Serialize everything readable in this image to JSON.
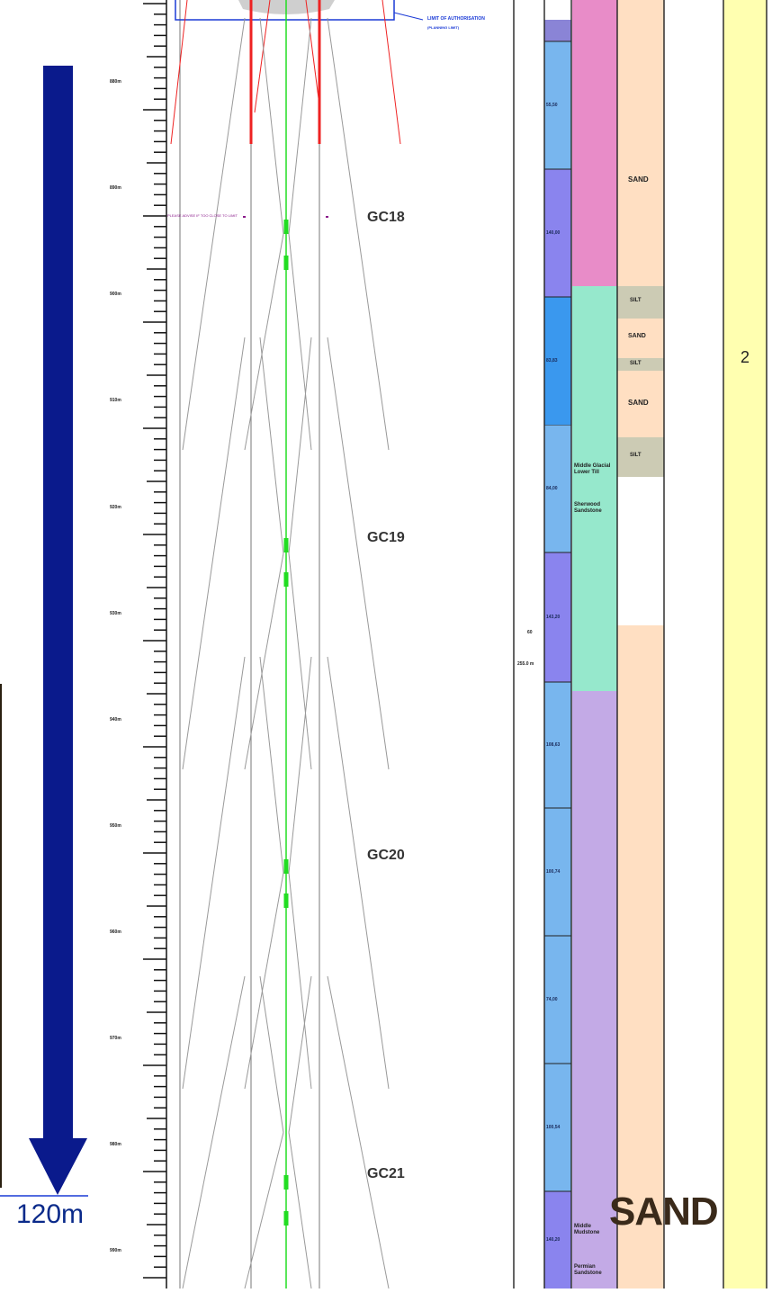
{
  "gc_markers": [
    "GC18",
    "GC19",
    "GC20",
    "GC21"
  ],
  "depth_label": "120m",
  "zone_number": "2",
  "lithology": {
    "sand_labels": [
      "SAND",
      "SAND",
      "SAND"
    ],
    "silt_labels": [
      "SILT",
      "SILT",
      "SILT"
    ],
    "big_sand": "SAND"
  },
  "annotations": {
    "limit_of_authorisation": "LIMIT OF AUTHORISATION",
    "limit_sub": "(PLANNING LIMIT)",
    "purple_note": "PLEASE ADVISE IF TOO CLOSE TO LIMIT",
    "mid_value": "60",
    "mid_value2": "255.0 m"
  },
  "segment_values": [
    "55,50",
    "140,00",
    "83,83",
    "84,00",
    "143,20",
    "108,63",
    "100,74",
    "74,00",
    "100,54",
    "140,20"
  ],
  "strata": [
    "Middle Glacial Lower Till",
    "Sherwood Sandstone",
    "Middle Mudstone",
    "Permian Sandstone"
  ],
  "tick_labels": [
    "880m",
    "890m",
    "900m",
    "910m",
    "920m",
    "930m",
    "940m",
    "950m",
    "960m",
    "970m",
    "980m",
    "990m"
  ],
  "colors": {
    "arrow": "#0a1a8c",
    "green_line": "#22dd22",
    "red_line": "#ee2222",
    "pink_strata": "#e88cc8",
    "teal_strata": "#96e8cc",
    "lavender_strata": "#c3aae6",
    "peach": "#ffdfc2",
    "yellow": "#ffffb0",
    "silt": "#cccbb4"
  }
}
